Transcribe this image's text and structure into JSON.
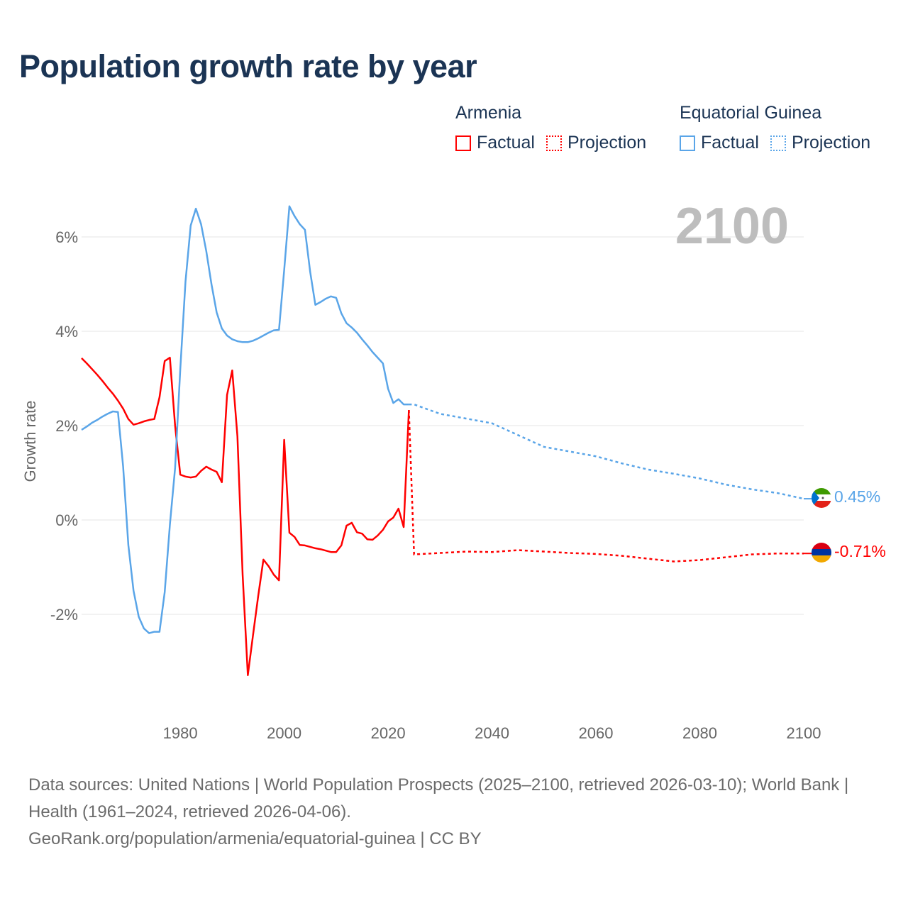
{
  "title": "Population growth rate by year",
  "legend": {
    "groups": [
      {
        "name": "Armenia",
        "factual": "Factual",
        "projection": "Projection",
        "color": "#ff0000"
      },
      {
        "name": "Equatorial Guinea",
        "factual": "Factual",
        "projection": "Projection",
        "color": "#5aa5e8"
      }
    ]
  },
  "year_label": "2100",
  "footer": {
    "line1": "Data sources: United Nations | World Population Prospects (2025–2100, retrieved 2026-03-10); World Bank | Health (1961–2024, retrieved 2026-04-06).",
    "line2": "GeoRank.org/population/armenia/equatorial-guinea | CC BY"
  },
  "chart_data": {
    "type": "line",
    "title": "Population growth rate by year",
    "xlabel": "",
    "ylabel": "Growth rate",
    "xlim": [
      1961,
      2100
    ],
    "ylim": [
      -4,
      7
    ],
    "grid": true,
    "x_ticks": [
      1980,
      2000,
      2020,
      2040,
      2060,
      2080,
      2100
    ],
    "y_ticks": [
      {
        "v": 6,
        "label": "6%"
      },
      {
        "v": 4,
        "label": "4%"
      },
      {
        "v": 2,
        "label": "2%"
      },
      {
        "v": 0,
        "label": "0%"
      },
      {
        "v": -2,
        "label": "-2%"
      }
    ],
    "legend_position": "top-right",
    "series": [
      {
        "name": "Armenia",
        "color": "#ff0000",
        "end_label": "-0.71%",
        "factual": {
          "x_start": 1961,
          "values": [
            3.43,
            3.32,
            3.2,
            3.08,
            2.95,
            2.81,
            2.68,
            2.53,
            2.36,
            2.14,
            2.02,
            2.05,
            2.09,
            2.12,
            2.14,
            2.6,
            3.37,
            3.44,
            2.0,
            0.96,
            0.92,
            0.9,
            0.92,
            1.04,
            1.13,
            1.07,
            1.02,
            0.8,
            2.65,
            3.17,
            1.77,
            -1.16,
            -3.29,
            -2.44,
            -1.61,
            -0.84,
            -0.98,
            -1.16,
            -1.28,
            1.7,
            -0.27,
            -0.36,
            -0.53,
            -0.54,
            -0.57,
            -0.6,
            -0.62,
            -0.65,
            -0.68,
            -0.68,
            -0.54,
            -0.12,
            -0.06,
            -0.26,
            -0.29,
            -0.41,
            -0.42,
            -0.33,
            -0.21,
            -0.03,
            0.05,
            0.24,
            -0.15,
            2.33
          ]
        },
        "projection": {
          "x": [
            2024,
            2025,
            2030,
            2035,
            2040,
            2045,
            2050,
            2055,
            2060,
            2065,
            2070,
            2075,
            2080,
            2085,
            2090,
            2095,
            2100
          ],
          "values": [
            2.33,
            -0.73,
            -0.7,
            -0.67,
            -0.68,
            -0.64,
            -0.67,
            -0.7,
            -0.72,
            -0.76,
            -0.82,
            -0.88,
            -0.85,
            -0.79,
            -0.73,
            -0.71,
            -0.71
          ]
        }
      },
      {
        "name": "Equatorial Guinea",
        "color": "#5aa5e8",
        "end_label": "0.45%",
        "factual": {
          "x_start": 1961,
          "values": [
            1.91,
            1.98,
            2.06,
            2.12,
            2.19,
            2.25,
            2.3,
            2.29,
            1.13,
            -0.53,
            -1.5,
            -2.05,
            -2.3,
            -2.4,
            -2.37,
            -2.37,
            -1.53,
            -0.1,
            1.1,
            3.2,
            5.05,
            6.24,
            6.6,
            6.27,
            5.7,
            5.0,
            4.4,
            4.06,
            3.91,
            3.83,
            3.79,
            3.77,
            3.77,
            3.8,
            3.85,
            3.91,
            3.97,
            4.02,
            4.03,
            5.3,
            6.65,
            6.44,
            6.27,
            6.15,
            5.26,
            4.56,
            4.62,
            4.69,
            4.74,
            4.71,
            4.38,
            4.17,
            4.08,
            3.97,
            3.83,
            3.7,
            3.56,
            3.44,
            3.32,
            2.78,
            2.48,
            2.56,
            2.45,
            2.45
          ]
        },
        "projection": {
          "x": [
            2024,
            2025,
            2030,
            2035,
            2040,
            2045,
            2050,
            2055,
            2060,
            2065,
            2070,
            2075,
            2080,
            2085,
            2090,
            2095,
            2100
          ],
          "values": [
            2.45,
            2.45,
            2.25,
            2.15,
            2.05,
            1.8,
            1.55,
            1.45,
            1.35,
            1.2,
            1.07,
            0.98,
            0.88,
            0.75,
            0.65,
            0.57,
            0.45
          ]
        }
      }
    ]
  }
}
